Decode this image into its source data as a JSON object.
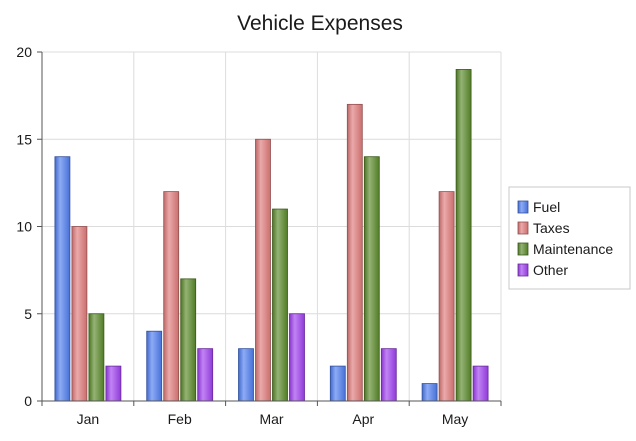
{
  "chart_data": {
    "type": "bar",
    "title": "Vehicle Expenses",
    "xlabel": "",
    "ylabel": "",
    "categories": [
      "Jan",
      "Feb",
      "Mar",
      "Apr",
      "May"
    ],
    "ylim": [
      0,
      20
    ],
    "yticks": [
      "0",
      "5",
      "10",
      "15",
      "20"
    ],
    "grid": true,
    "legend_position": "right",
    "series": [
      {
        "name": "Fuel",
        "color": "#4f7df0",
        "values": [
          14,
          4,
          3,
          2,
          1
        ]
      },
      {
        "name": "Taxes",
        "color": "#e07a7a",
        "values": [
          10,
          12,
          15,
          17,
          12
        ]
      },
      {
        "name": "Maintenance",
        "color": "#5a8a2a",
        "values": [
          5,
          7,
          11,
          14,
          19
        ]
      },
      {
        "name": "Other",
        "color": "#a040f0",
        "values": [
          2,
          3,
          5,
          3,
          2
        ]
      }
    ]
  }
}
